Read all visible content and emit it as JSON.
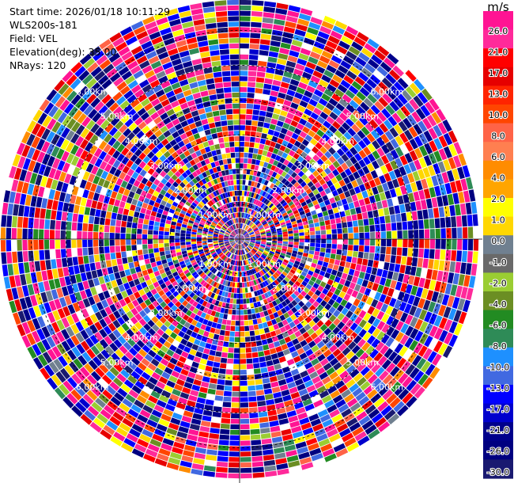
{
  "info": {
    "start_time": "Start time: 2026/01/18 10:11:29",
    "site": "WLS200s-181",
    "field": "Field: VEL",
    "elevation": "Elevation(deg): 35.00",
    "nrays": "NRays: 120"
  },
  "chart_data": {
    "type": "heatmap",
    "subtype": "polar-ppi",
    "field": "VEL",
    "elevation_deg": 35.0,
    "n_rays": 120,
    "unit": "m/s",
    "range_rings_km": [
      1.0,
      2.0,
      3.0,
      4.0,
      5.0,
      6.0
    ],
    "range_ring_labels": [
      "1.00km",
      "2.00km",
      "3.00km",
      "4.00km",
      "5.00km",
      "6.00km"
    ],
    "colorbar": {
      "ticks": [
        "26.0",
        "21.0",
        "17.0",
        "13.0",
        "10.0",
        "8.0",
        "6.0",
        "4.0",
        "2.0",
        "1.0",
        "0.0",
        "-1.0",
        "-2.0",
        "-4.0",
        "-6.0",
        "-8.0",
        "-10.0",
        "-13.0",
        "-17.0",
        "-21.0",
        "-26.0",
        "-30.0"
      ],
      "bins": [
        {
          "color": "#ff1493"
        },
        {
          "color": "#ff2a9a"
        },
        {
          "color": "#ff0000"
        },
        {
          "color": "#e60000"
        },
        {
          "color": "#ff2400"
        },
        {
          "color": "#ff4500"
        },
        {
          "color": "#ff6347"
        },
        {
          "color": "#ff7f50"
        },
        {
          "color": "#ff8c00"
        },
        {
          "color": "#ffa500"
        },
        {
          "color": "#ffff00"
        },
        {
          "color": "#ffd700"
        },
        {
          "color": "#708090"
        },
        {
          "color": "#696969"
        },
        {
          "color": "#9acd32"
        },
        {
          "color": "#6b8e23"
        },
        {
          "color": "#228b22"
        },
        {
          "color": "#2e8b57"
        },
        {
          "color": "#1e90ff"
        },
        {
          "color": "#4169e1"
        },
        {
          "color": "#0000ff"
        },
        {
          "color": "#0000cd"
        },
        {
          "color": "#00008b"
        },
        {
          "color": "#000080"
        },
        {
          "color": "#191970"
        }
      ]
    },
    "palette_weights": [
      {
        "color": "#ff1493",
        "w": 10
      },
      {
        "color": "#ff2a9a",
        "w": 6
      },
      {
        "color": "#e60000",
        "w": 5
      },
      {
        "color": "#ff0000",
        "w": 4
      },
      {
        "color": "#ff4500",
        "w": 4
      },
      {
        "color": "#ff6347",
        "w": 3
      },
      {
        "color": "#ff8c00",
        "w": 3
      },
      {
        "color": "#ffd700",
        "w": 4
      },
      {
        "color": "#ffff00",
        "w": 3
      },
      {
        "color": "#708090",
        "w": 2
      },
      {
        "color": "#9acd32",
        "w": 3
      },
      {
        "color": "#6b8e23",
        "w": 2
      },
      {
        "color": "#228b22",
        "w": 3
      },
      {
        "color": "#2e8b57",
        "w": 2
      },
      {
        "color": "#1e90ff",
        "w": 4
      },
      {
        "color": "#4169e1",
        "w": 5
      },
      {
        "color": "#0000ff",
        "w": 9
      },
      {
        "color": "#0000cd",
        "w": 6
      },
      {
        "color": "#00008b",
        "w": 8
      },
      {
        "color": "#000080",
        "w": 7
      },
      {
        "color": "#191970",
        "w": 4
      },
      {
        "color": "#ffffff",
        "w": 3
      }
    ]
  }
}
